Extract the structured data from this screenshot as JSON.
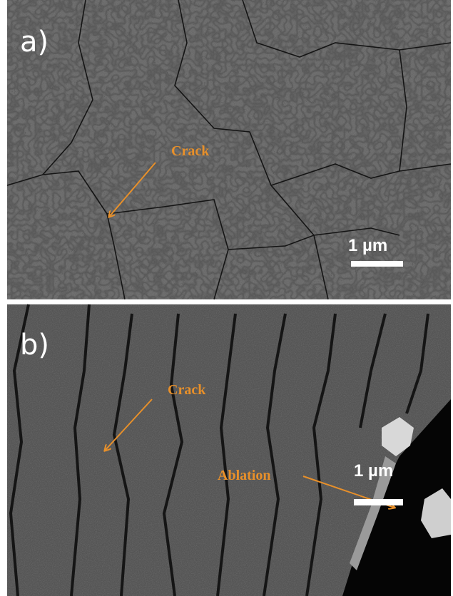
{
  "panels": [
    {
      "label": "a)",
      "annotations": [
        "Crack"
      ],
      "scale_bar": "1 µm"
    },
    {
      "label": "b)",
      "annotations": [
        "Crack",
        "Ablation"
      ],
      "scale_bar": "1 µm"
    }
  ]
}
